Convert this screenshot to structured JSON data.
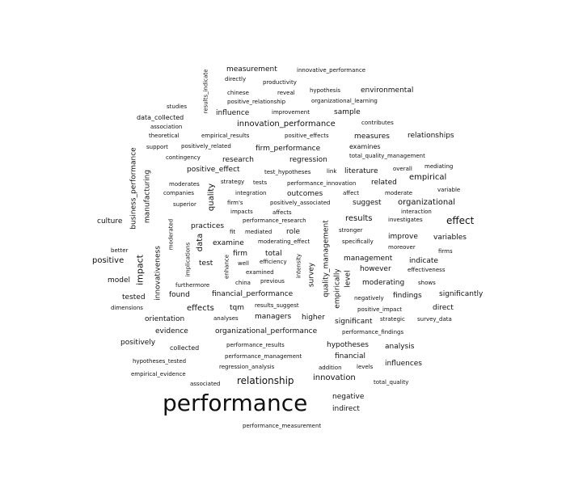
{
  "colors": {
    "background": "#ffffff",
    "text": "#111111"
  },
  "words": [
    "measurement",
    "innovative_performance",
    "directly",
    "productivity",
    "chinese",
    "reveal",
    "hypothesis",
    "environmental",
    "positive_relationship",
    "organizational_learning",
    "results_indicate",
    "studies",
    "influence",
    "improvement",
    "sample",
    "data_collected",
    "association",
    "innovation_performance",
    "contributes",
    "theoretical",
    "empirical_results",
    "positive_effects",
    "measures",
    "relationships",
    "support",
    "positively_related",
    "firm_performance",
    "examines",
    "total_quality_management",
    "contingency",
    "research",
    "regression",
    "mediating",
    "positive_effect",
    "test_hypotheses",
    "link",
    "literature",
    "overall",
    "empirical",
    "moderates",
    "strategy",
    "tests",
    "performance_innovation",
    "related",
    "variable",
    "companies",
    "integration",
    "outcomes",
    "affect",
    "moderate",
    "organizational",
    "superior",
    "firm's",
    "positively_associated",
    "suggest",
    "impacts",
    "affects",
    "interaction",
    "culture",
    "performance_research",
    "results",
    "investigates",
    "effect",
    "practices",
    "fit",
    "mediated",
    "role",
    "stronger",
    "improve",
    "variables",
    "examine",
    "moderating_effect",
    "specifically",
    "moreover",
    "better",
    "firm",
    "total",
    "firms",
    "positive",
    "test",
    "efficiency",
    "management",
    "indicate",
    "well",
    "examined",
    "however",
    "effectiveness",
    "model",
    "china",
    "previous",
    "moderating",
    "shows",
    "furthermore",
    "financial_performance",
    "findings",
    "significantly",
    "tested",
    "found",
    "negatively",
    "dimensions",
    "effects",
    "tqm",
    "results_suggest",
    "positive_impact",
    "direct",
    "orientation",
    "analyses",
    "managers",
    "higher",
    "significant",
    "strategic",
    "survey_data",
    "evidence",
    "organizational_performance",
    "performance_findings",
    "positively",
    "performance_results",
    "hypotheses",
    "analysis",
    "collected",
    "performance_management",
    "financial",
    "hypotheses_tested",
    "regression_analysis",
    "addition",
    "levels",
    "influences",
    "empirical_evidence",
    "relationship",
    "innovation",
    "total_quality",
    "associated",
    "performance",
    "negative",
    "indirect",
    "performance_measurement",
    "business_performance",
    "manufacturing",
    "quality",
    "data",
    "moderated",
    "implications",
    "impact",
    "innovativeness",
    "enhance",
    "intensity",
    "quality_management",
    "survey",
    "empirically",
    "level"
  ]
}
